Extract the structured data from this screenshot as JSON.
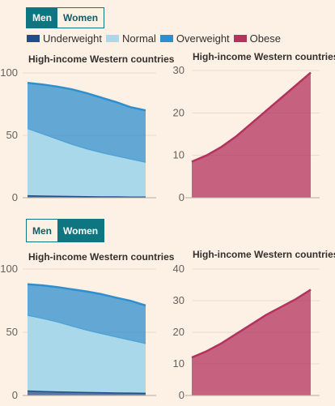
{
  "toggles": [
    {
      "men": "Men",
      "women": "Women",
      "selected": "men"
    },
    {
      "men": "Men",
      "women": "Women",
      "selected": "women"
    }
  ],
  "legend": [
    {
      "label": "Underweight",
      "color": "#1e4f8a"
    },
    {
      "label": "Normal",
      "color": "#a9d8ea"
    },
    {
      "label": "Overweight",
      "color": "#2f8fce"
    },
    {
      "label": "Obese",
      "color": "#b3325e"
    }
  ],
  "chart_data": [
    {
      "type": "area",
      "title": "High-income Western countries",
      "x": [
        0,
        1,
        2,
        3,
        4,
        5,
        6,
        7,
        8
      ],
      "ylim": [
        0,
        100
      ],
      "yticks": [
        "0",
        "50",
        "100"
      ],
      "stacked": true,
      "series": [
        {
          "name": "Underweight",
          "values": [
            2,
            1.8,
            1.6,
            1.4,
            1.3,
            1.2,
            1.1,
            1,
            1
          ]
        },
        {
          "name": "Normal",
          "values": [
            53,
            49,
            45,
            41,
            37.5,
            34.5,
            32,
            29.5,
            27
          ]
        },
        {
          "name": "Overweight",
          "values": [
            37,
            40,
            42.5,
            44.5,
            45,
            44.5,
            43.5,
            42,
            42
          ]
        }
      ],
      "grid": true
    },
    {
      "type": "area",
      "title": "High-income Western countries",
      "x": [
        0,
        1,
        2,
        3,
        4,
        5,
        6,
        7,
        8
      ],
      "ylim": [
        0,
        30
      ],
      "yticks": [
        "0",
        "10",
        "20",
        "30"
      ],
      "series": [
        {
          "name": "Obese",
          "values": [
            8.5,
            10,
            12,
            14.5,
            17.5,
            20.5,
            23.5,
            26.5,
            29.5
          ]
        }
      ],
      "grid": true
    },
    {
      "type": "area",
      "title": "High-income Western countries",
      "x": [
        0,
        1,
        2,
        3,
        4,
        5,
        6,
        7,
        8
      ],
      "ylim": [
        0,
        100
      ],
      "yticks": [
        "0",
        "50",
        "100"
      ],
      "stacked": true,
      "series": [
        {
          "name": "Underweight",
          "values": [
            4,
            3.6,
            3.3,
            3,
            2.8,
            2.6,
            2.4,
            2.3,
            2.2
          ]
        },
        {
          "name": "Normal",
          "values": [
            59,
            57,
            54.5,
            51.5,
            48.5,
            46,
            43.5,
            41,
            38.5
          ]
        },
        {
          "name": "Overweight",
          "values": [
            25,
            26.5,
            28,
            29.5,
            31,
            31.5,
            31.5,
            31.5,
            30.5
          ]
        }
      ],
      "grid": true
    },
    {
      "type": "area",
      "title": "High-income Western countries",
      "x": [
        0,
        1,
        2,
        3,
        4,
        5,
        6,
        7,
        8
      ],
      "ylim": [
        0,
        40
      ],
      "yticks": [
        "0",
        "10",
        "20",
        "30",
        "40"
      ],
      "series": [
        {
          "name": "Obese",
          "values": [
            12,
            14,
            16.5,
            19.5,
            22.5,
            25.5,
            28,
            30.5,
            33.5
          ]
        }
      ],
      "grid": true
    }
  ]
}
